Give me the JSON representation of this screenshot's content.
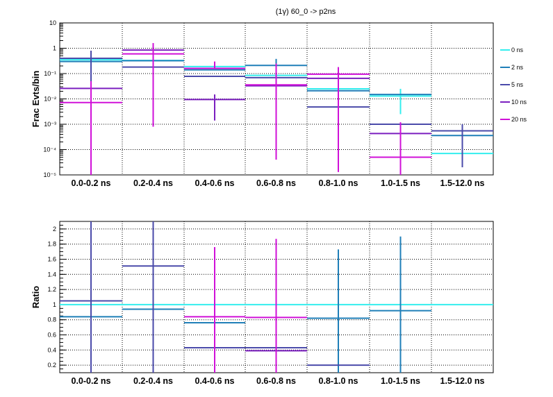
{
  "title": "(1γ) 60_0 -> p2ns",
  "colors": {
    "0 ns": "#33eeee",
    "2 ns": "#1f7fb8",
    "5 ns": "#4a4aaa",
    "10 ns": "#7b1fbf",
    "20 ns": "#d010d8"
  },
  "chart_data": [
    {
      "type": "bar",
      "name": "top",
      "ylabel": "Frac Evts/bin",
      "yscale": "log",
      "ylim": [
        1e-05,
        10
      ],
      "ytick_labels": [
        "10",
        "1",
        "10⁻¹",
        "10⁻²",
        "10⁻³",
        "10⁻⁴",
        "10⁻⁵"
      ],
      "categories": [
        "0.0-0.2 ns",
        "0.2-0.4 ns",
        "0.4-0.6 ns",
        "0.6-0.8 ns",
        "0.8-1.0 ns",
        "1.0-1.5 ns",
        "1.5-12.0 ns"
      ],
      "legend_position": "right",
      "series": [
        {
          "name": "0 ns",
          "values": [
            0.35,
            0.33,
            0.19,
            0.085,
            0.025,
            0.013,
            7e-05
          ],
          "err_lo": [
            null,
            null,
            null,
            null,
            null,
            0.0025,
            null
          ],
          "err_hi": [
            null,
            null,
            null,
            null,
            null,
            0.025,
            null
          ]
        },
        {
          "name": "2 ns",
          "values": [
            0.3,
            0.32,
            0.14,
            0.21,
            0.021,
            0.015,
            0.00036
          ],
          "err_lo": [
            null,
            null,
            null,
            null,
            null,
            null,
            null
          ],
          "err_hi": [
            0.7,
            null,
            null,
            0.38,
            null,
            null,
            null
          ]
        },
        {
          "name": "5 ns",
          "values": [
            0.4,
            0.18,
            0.078,
            0.069,
            0.0048,
            0.001,
            0.00055
          ],
          "err_lo": [
            1e-05,
            null,
            null,
            null,
            null,
            null,
            2e-05
          ],
          "err_hi": [
            0.8,
            null,
            null,
            null,
            null,
            null,
            0.001
          ]
        },
        {
          "name": "10 ns",
          "values": [
            0.026,
            0.85,
            0.0095,
            0.033,
            0.065,
            0.00043,
            null
          ],
          "err_lo": [
            null,
            null,
            0.0014,
            null,
            null,
            null,
            null
          ],
          "err_hi": [
            null,
            null,
            0.015,
            null,
            null,
            null,
            null
          ]
        },
        {
          "name": "20 ns",
          "values": [
            0.0072,
            0.6,
            0.16,
            0.036,
            0.095,
            5e-05,
            null
          ],
          "err_lo": [
            1e-05,
            0.0008,
            null,
            4e-05,
            1.3e-05,
            1e-05,
            null
          ],
          "err_hi": [
            0.05,
            1.6,
            0.3,
            0.25,
            0.18,
            0.0012,
            null
          ]
        }
      ]
    },
    {
      "type": "bar",
      "name": "bottom",
      "ylabel": "Ratio",
      "ylim": [
        0.1,
        2.1
      ],
      "ytick_labels": [
        "0.2",
        "0.4",
        "0.6",
        "0.8",
        "1",
        "1.2",
        "1.4",
        "1.6",
        "1.8",
        "2"
      ],
      "categories": [
        "0.0-0.2 ns",
        "0.2-0.4 ns",
        "0.4-0.6 ns",
        "0.6-0.8 ns",
        "0.8-1.0 ns",
        "1.0-1.5 ns",
        "1.5-12.0 ns"
      ],
      "series": [
        {
          "name": "0 ns",
          "values": [
            1,
            1,
            1,
            1,
            1,
            1,
            1
          ],
          "err_lo": [
            null,
            null,
            null,
            null,
            null,
            null,
            null
          ],
          "err_hi": [
            null,
            null,
            null,
            null,
            null,
            null,
            null
          ]
        },
        {
          "name": "2 ns",
          "values": [
            0.84,
            0.94,
            0.76,
            null,
            0.82,
            0.92,
            null
          ],
          "err_lo": [
            null,
            null,
            null,
            null,
            0.1,
            0.1,
            null
          ],
          "err_hi": [
            null,
            null,
            null,
            null,
            1.73,
            1.9,
            null
          ]
        },
        {
          "name": "5 ns",
          "values": [
            1.05,
            1.51,
            0.43,
            0.43,
            0.2,
            null,
            null
          ],
          "err_lo": [
            0.1,
            0.1,
            null,
            null,
            null,
            null,
            null
          ],
          "err_hi": [
            2.1,
            2.1,
            null,
            null,
            null,
            null,
            null
          ]
        },
        {
          "name": "10 ns",
          "values": [
            null,
            null,
            null,
            0.39,
            null,
            null,
            null
          ],
          "err_lo": [
            null,
            null,
            null,
            null,
            null,
            null,
            null
          ],
          "err_hi": [
            null,
            null,
            null,
            null,
            null,
            null,
            null
          ]
        },
        {
          "name": "20 ns",
          "values": [
            null,
            null,
            0.84,
            0.83,
            null,
            null,
            null
          ],
          "err_lo": [
            null,
            null,
            0.1,
            0.1,
            null,
            null,
            null
          ],
          "err_hi": [
            null,
            null,
            1.76,
            1.87,
            null,
            null,
            null
          ]
        }
      ]
    }
  ]
}
